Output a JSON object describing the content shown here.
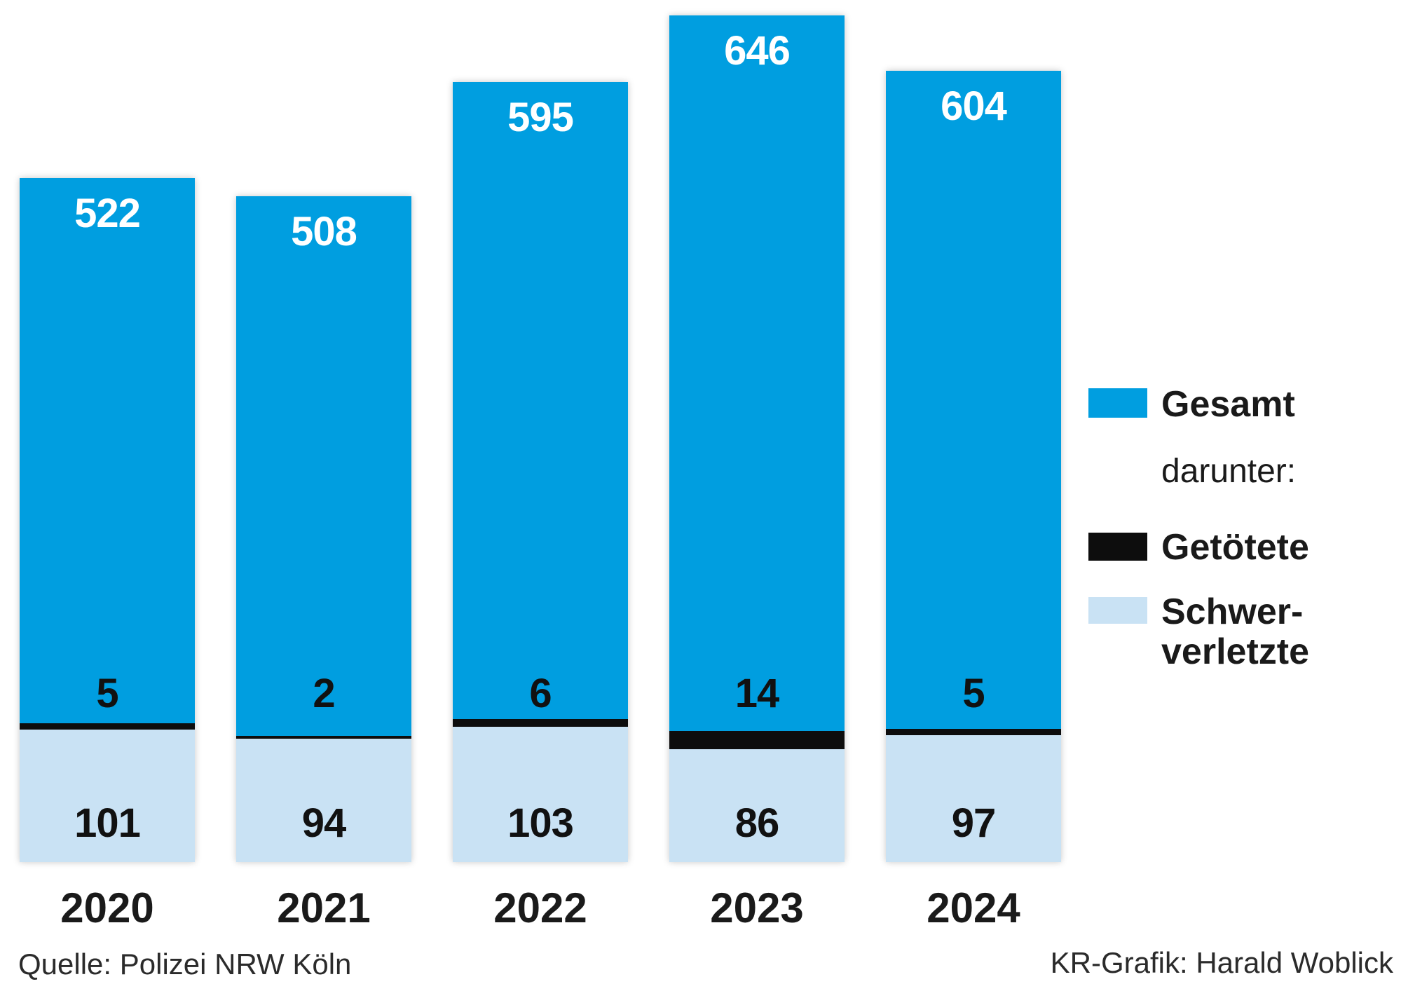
{
  "chart_data": {
    "type": "bar",
    "stacked_overlay": true,
    "categories": [
      "2020",
      "2021",
      "2022",
      "2023",
      "2024"
    ],
    "series": [
      {
        "name": "Gesamt",
        "color": "#009EE0",
        "values": [
          522,
          508,
          595,
          646,
          604
        ]
      },
      {
        "name": "Getötete",
        "color": "#0d0d0d",
        "values": [
          5,
          2,
          6,
          14,
          5
        ]
      },
      {
        "name": "Schwerverletzte",
        "color": "#C9E2F4",
        "values": [
          101,
          94,
          103,
          86,
          97
        ]
      }
    ],
    "ylim": [
      0,
      650
    ],
    "grid": false,
    "legend_position": "right"
  },
  "legend": {
    "gesamt_label": "Gesamt",
    "darunter_label": "darunter:",
    "getoetete_label": "Getötete",
    "schwer_label_line1": "Schwer-",
    "schwer_label_line2": "verletzte",
    "gesamt_color": "#009EE0",
    "getoetete_color": "#0d0d0d",
    "schwer_color": "#C9E2F4"
  },
  "footer": {
    "source": "Quelle: Polizei NRW Köln",
    "credit": "KR-Grafik: Harald Woblick"
  }
}
